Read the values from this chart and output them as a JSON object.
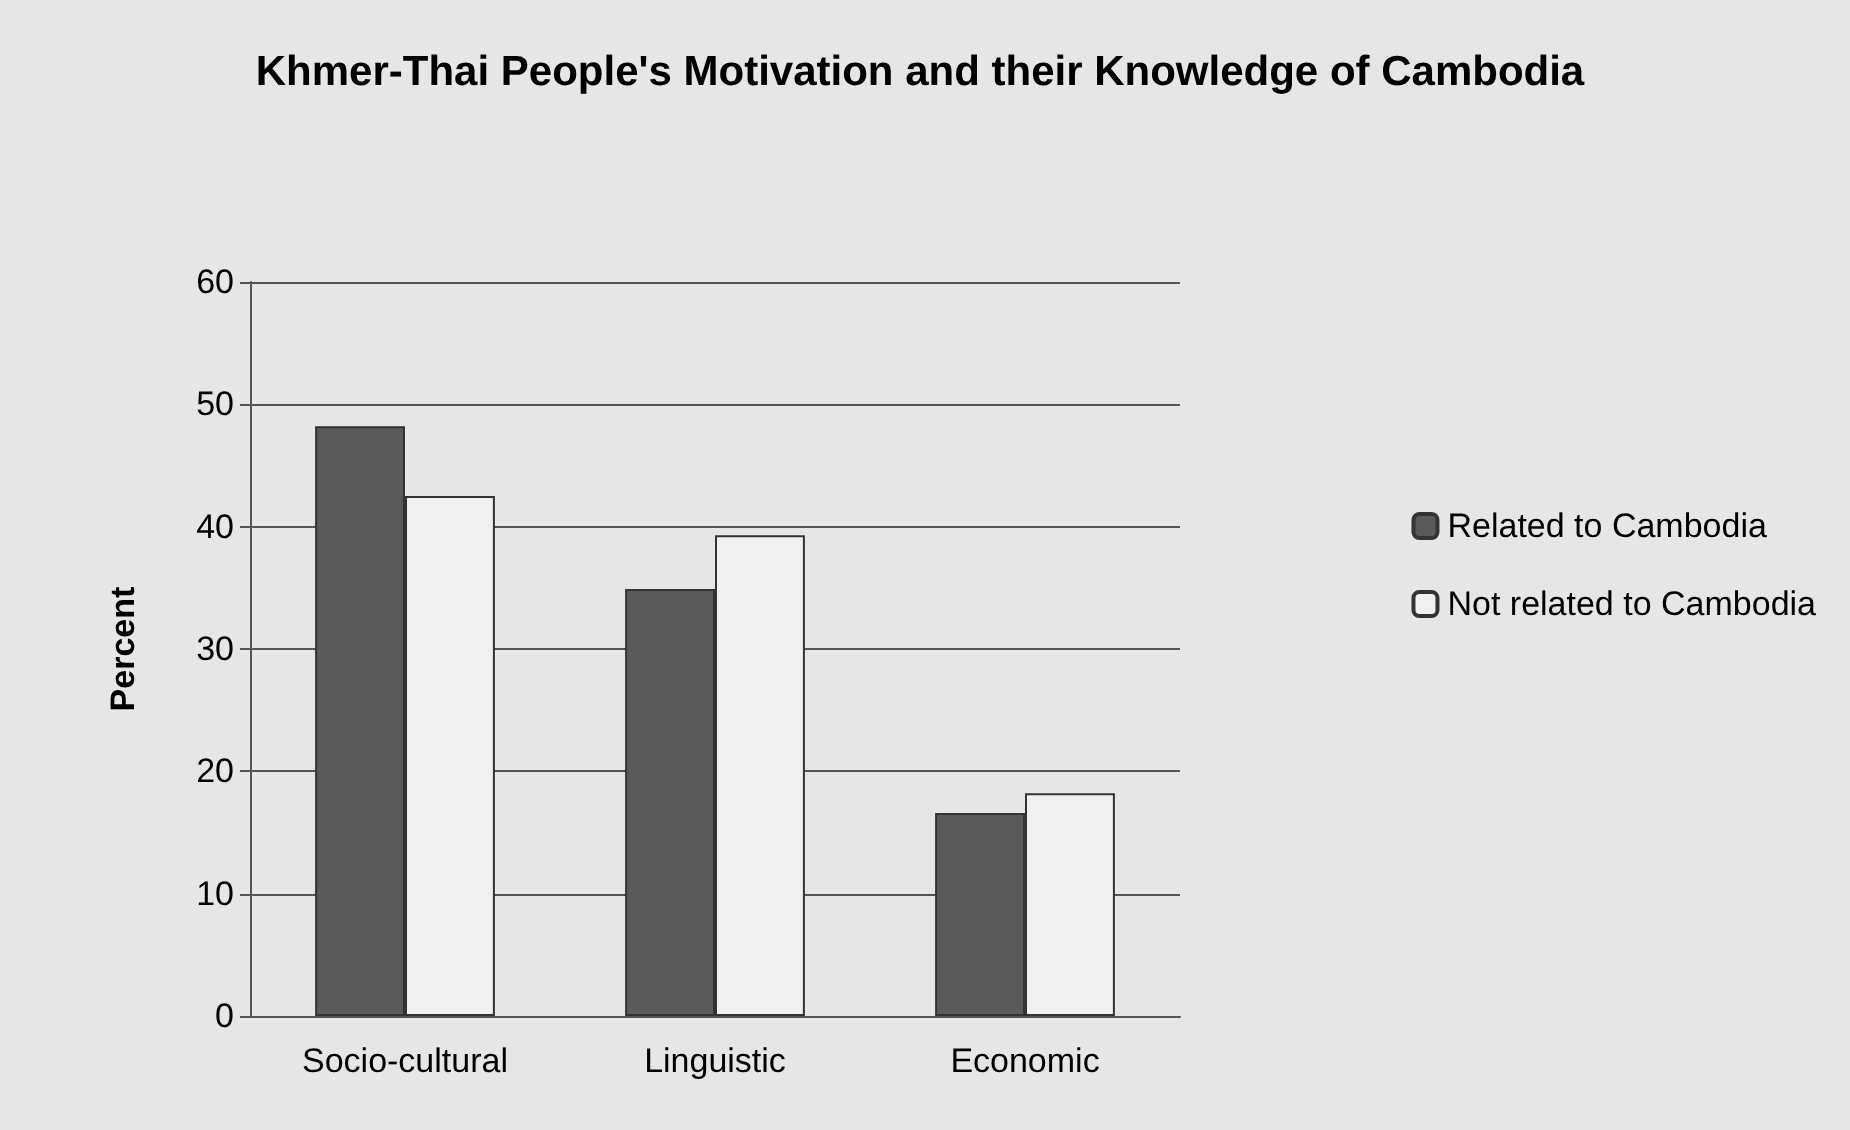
{
  "chart_data": {
    "type": "bar",
    "title": "Khmer-Thai People's Motivation and their Knowledge of Cambodia",
    "ylabel": "Percent",
    "categories": [
      "Socio-cultural",
      "Linguistic",
      "Economic"
    ],
    "series": [
      {
        "name": "Related to Cambodia",
        "color": "#5a5a5a",
        "values": [
          48.2,
          34.9,
          16.6
        ]
      },
      {
        "name": "Not related to Cambodia",
        "color": "#f0f0f0",
        "values": [
          42.5,
          39.3,
          18.2
        ]
      }
    ],
    "ylim": [
      0,
      60
    ],
    "yticks": [
      0,
      10,
      20,
      30,
      40,
      50,
      60
    ],
    "grid": "y",
    "legend": "right"
  }
}
